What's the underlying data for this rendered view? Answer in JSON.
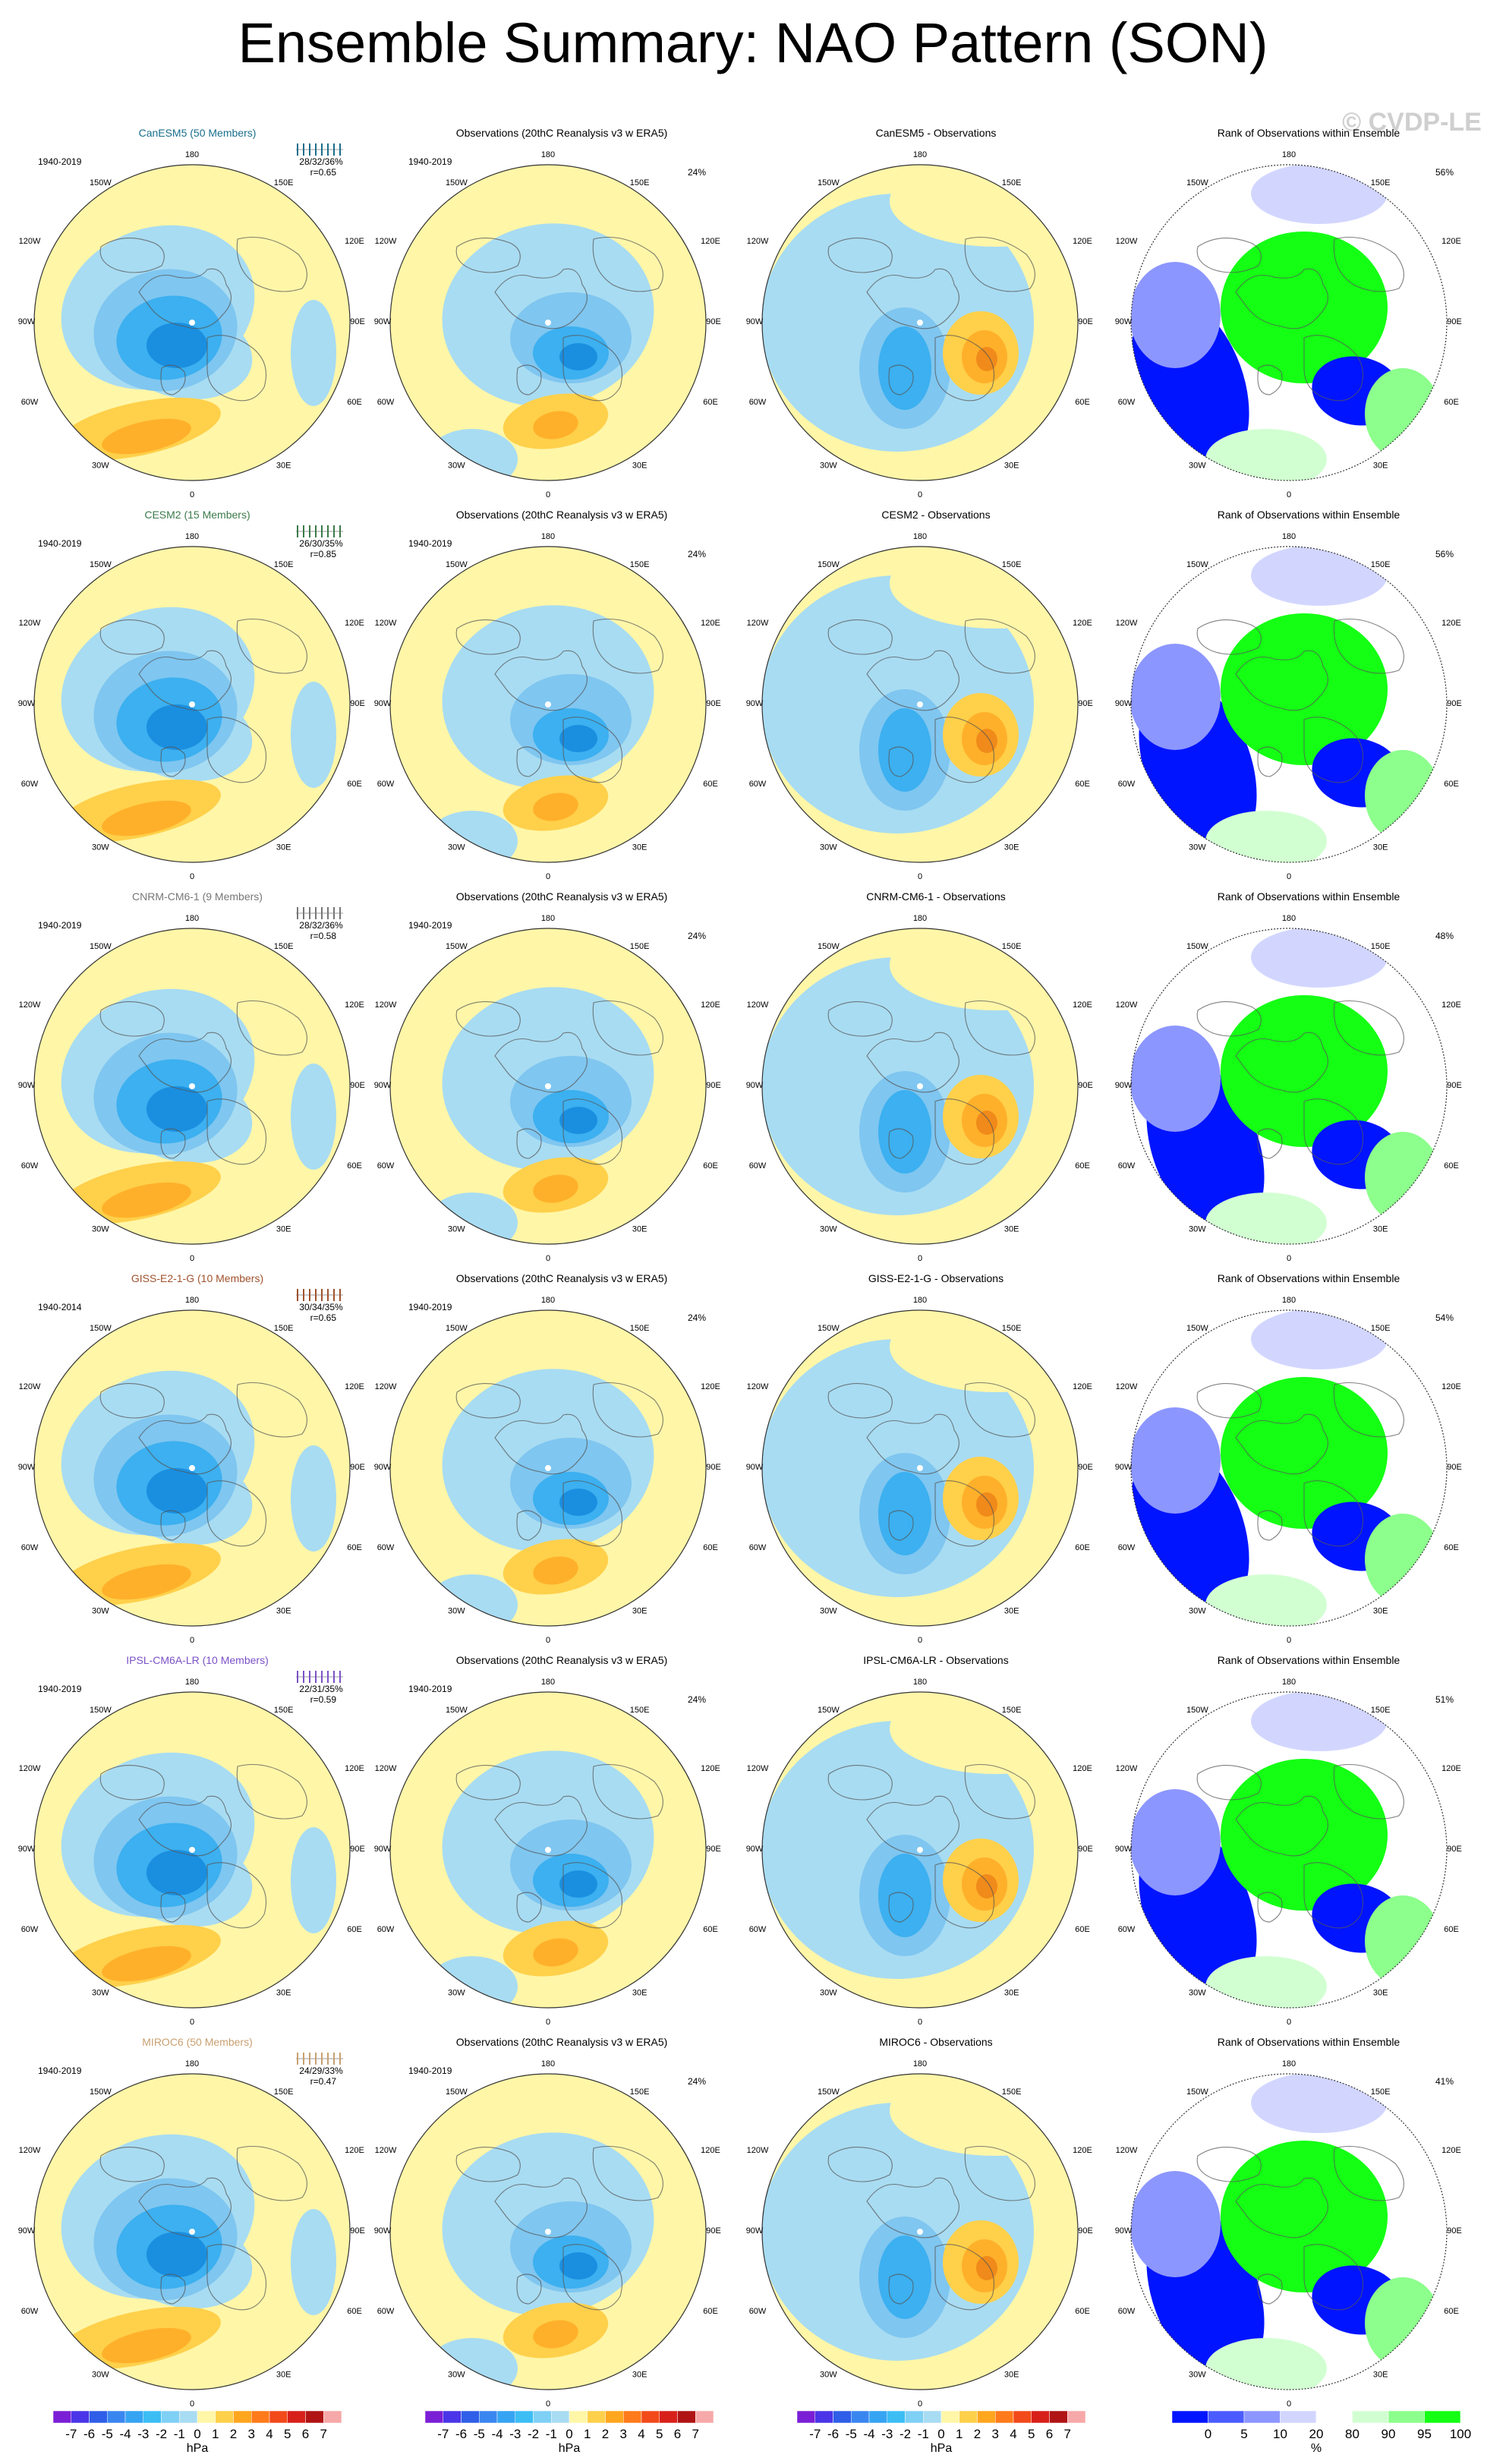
{
  "title": "Ensemble Summary: NAO Pattern (SON)",
  "watermark": "© CVDP-LE",
  "obs_title": "Observations (20thC Reanalysis v3 w ERA5)",
  "rank_title": "Rank of Observations within Ensemble",
  "obs_pct": "24%",
  "obs_period": "1940-2019",
  "lon_labels": [
    "180",
    "150W",
    "150E",
    "120W",
    "120E",
    "90W",
    "90E",
    "60W",
    "60E",
    "30W",
    "30E",
    "0"
  ],
  "rows": [
    {
      "model": "CanESM5 (50 Members)",
      "model_color": "#1a6e8c",
      "diff_title": "CanESM5 - Observations",
      "period": "1940-2019",
      "stats": "28/32/36%",
      "r": "r=0.65",
      "rank_pct": "56%"
    },
    {
      "model": "CESM2 (15 Members)",
      "model_color": "#3b7a4a",
      "diff_title": "CESM2 - Observations",
      "period": "1940-2019",
      "stats": "26/30/35%",
      "r": "r=0.85",
      "rank_pct": "56%"
    },
    {
      "model": "CNRM-CM6-1 (9 Members)",
      "model_color": "#777777",
      "diff_title": "CNRM-CM6-1 - Observations",
      "period": "1940-2019",
      "stats": "28/32/36%",
      "r": "r=0.58",
      "rank_pct": "48%"
    },
    {
      "model": "GISS-E2-1-G (10 Members)",
      "model_color": "#a0522d",
      "diff_title": "GISS-E2-1-G - Observations",
      "period": "1940-2014",
      "stats": "30/34/35%",
      "r": "r=0.65",
      "rank_pct": "54%"
    },
    {
      "model": "IPSL-CM6A-LR (10 Members)",
      "model_color": "#7b52c7",
      "diff_title": "IPSL-CM6A-LR - Observations",
      "period": "1940-2019",
      "stats": "22/31/35%",
      "r": "r=0.59",
      "rank_pct": "51%"
    },
    {
      "model": "MIROC6 (50 Members)",
      "model_color": "#c8a070",
      "diff_title": "MIROC6 - Observations",
      "period": "1940-2019",
      "stats": "24/29/33%",
      "r": "r=0.47",
      "rank_pct": "41%"
    }
  ],
  "colorbar": {
    "labels": [
      "-7",
      "-6",
      "-5",
      "-4",
      "-3",
      "-2",
      "-1",
      "0",
      "1",
      "2",
      "3",
      "4",
      "5",
      "6",
      "7"
    ],
    "colors": [
      "#7a1fd6",
      "#4a36e8",
      "#2f5fe8",
      "#3a86f0",
      "#36a4f3",
      "#3cbef5",
      "#7fd0f5",
      "#a8dcf2",
      "#fff6a8",
      "#ffd04a",
      "#ffa61f",
      "#ff7a1a",
      "#f24a1a",
      "#d8201a",
      "#b01414",
      "#f7a8a8"
    ],
    "unit": "hPa"
  },
  "rank_colorbar": {
    "labels": [
      "0",
      "5",
      "10",
      "20",
      "80",
      "90",
      "95",
      "100"
    ],
    "colors": [
      "#0014ff",
      "#4a5cff",
      "#8c96ff",
      "#d2d6ff",
      "#ffffff",
      "#d2ffd2",
      "#8cff8c",
      "#14ff14"
    ],
    "unit": "%"
  }
}
